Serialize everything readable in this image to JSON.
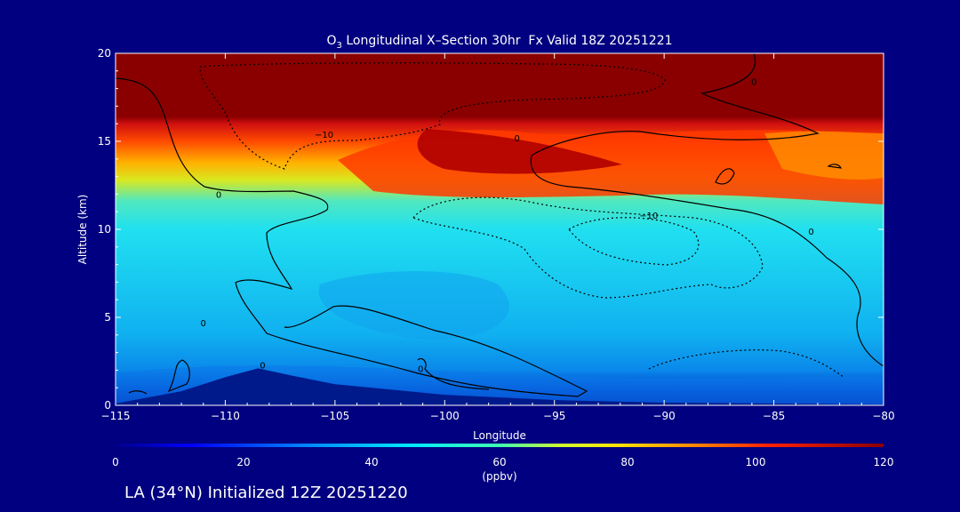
{
  "chart_data": {
    "type": "heatmap",
    "title_prefix": "O",
    "title_subscript": "3",
    "title_rest": " Longitudinal X–Section 30hr  Fx Valid 18Z 20251221",
    "xlabel": "Longitude",
    "ylabel": "Altitude (km)",
    "xlim": [
      -115,
      -80
    ],
    "ylim": [
      0,
      20
    ],
    "x_ticks": [
      -115,
      -110,
      -105,
      -100,
      -95,
      -90,
      -85,
      -80
    ],
    "x_tick_labels": [
      "−115",
      "−110",
      "−105",
      "−100",
      "−95",
      "−90",
      "−85",
      "−80"
    ],
    "y_ticks": [
      0,
      5,
      10,
      15,
      20
    ],
    "y_tick_labels": [
      "0",
      "5",
      "10",
      "15",
      "20"
    ],
    "colorbar": {
      "min": 0,
      "max": 120,
      "ticks": [
        0,
        20,
        40,
        60,
        80,
        100,
        120
      ],
      "tick_labels": [
        "0",
        "20",
        "40",
        "60",
        "80",
        "100",
        "120"
      ],
      "unit": "(ppbv)"
    },
    "contour_labels": [
      {
        "text": "0",
        "lon": -110.3,
        "alt": 12.0
      },
      {
        "text": "0",
        "lon": -111.0,
        "alt": 4.7
      },
      {
        "text": "0",
        "lon": -108.3,
        "alt": 2.3
      },
      {
        "text": "0",
        "lon": -101.1,
        "alt": 2.1
      },
      {
        "text": "0",
        "lon": -96.7,
        "alt": 15.2
      },
      {
        "text": "0",
        "lon": -85.9,
        "alt": 18.4
      },
      {
        "text": "0",
        "lon": -83.3,
        "alt": 9.9
      },
      {
        "text": "−10",
        "lon": -105.5,
        "alt": 15.4
      },
      {
        "text": "−10",
        "lon": -90.7,
        "alt": 10.8
      }
    ],
    "terrain": [
      {
        "lon": -115,
        "alt": 0.1
      },
      {
        "lon": -112,
        "alt": 0.8
      },
      {
        "lon": -110,
        "alt": 1.6
      },
      {
        "lon": -108.5,
        "alt": 2.1
      },
      {
        "lon": -107,
        "alt": 1.7
      },
      {
        "lon": -105,
        "alt": 1.2
      },
      {
        "lon": -100,
        "alt": 0.6
      },
      {
        "lon": -95,
        "alt": 0.3
      },
      {
        "lon": -90,
        "alt": 0.15
      },
      {
        "lon": -80,
        "alt": 0.05
      }
    ],
    "colors": {
      "background": "#000080",
      "terrain": "#001a8c",
      "stratosphere": "#8a0000"
    }
  },
  "footer": "LA (34°N) Initialized 12Z 20251220"
}
